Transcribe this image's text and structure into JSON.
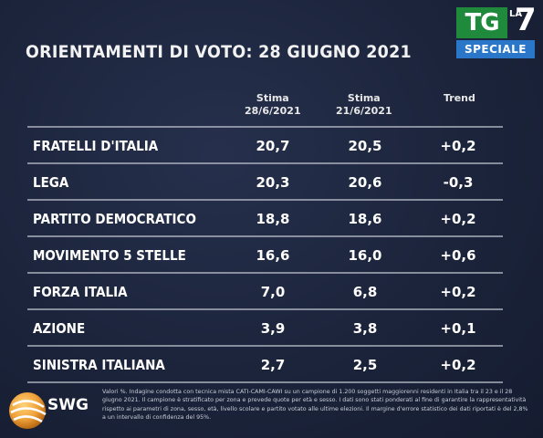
{
  "broadcaster": {
    "tg": "TG",
    "la": "LA",
    "seven": "7",
    "speciale": "SPECIALE"
  },
  "title": "ORIENTAMENTI DI VOTO: 28 GIUGNO 2021",
  "chart_data": {
    "type": "table",
    "columns": [
      {
        "line1": "Stima",
        "line2": "28/6/2021"
      },
      {
        "line1": "Stima",
        "line2": "21/6/2021"
      },
      {
        "line1": "Trend",
        "line2": ""
      }
    ],
    "rows": [
      {
        "party": "FRATELLI D'ITALIA",
        "stima_28_6": "20,7",
        "stima_21_6": "20,5",
        "trend": "+0,2"
      },
      {
        "party": "LEGA",
        "stima_28_6": "20,3",
        "stima_21_6": "20,6",
        "trend": "-0,3"
      },
      {
        "party": "PARTITO DEMOCRATICO",
        "stima_28_6": "18,8",
        "stima_21_6": "18,6",
        "trend": "+0,2"
      },
      {
        "party": "MOVIMENTO 5 STELLE",
        "stima_28_6": "16,6",
        "stima_21_6": "16,0",
        "trend": "+0,6"
      },
      {
        "party": "FORZA ITALIA",
        "stima_28_6": "7,0",
        "stima_21_6": "6,8",
        "trend": "+0,2"
      },
      {
        "party": "AZIONE",
        "stima_28_6": "3,9",
        "stima_21_6": "3,8",
        "trend": "+0,1"
      },
      {
        "party": "SINISTRA ITALIANA",
        "stima_28_6": "2,7",
        "stima_21_6": "2,5",
        "trend": "+0,2"
      }
    ]
  },
  "footnote": "Valori %. Indagine condotta con tecnica mista CATI-CAMI-CAWI su un campione di 1.200 soggetti maggiorenni residenti in Italia tra il 23 e il 28 giugno 2021. Il campione è stratificato per zona e prevede quote per età e sesso. I dati sono stati ponderati al fine di garantire la rappresentatività rispetto ai parametri di zona, sesso, età, livello scolare e partito votato alle ultime elezioni. Il margine d'errore statistico dei dati riportati è del 2,8% a un intervallo di confidenza del 95%.",
  "pollster": "SWG",
  "colors": {
    "background": "#1b233a",
    "text": "#ffffff",
    "separator": "#c8ccd6",
    "tg_green": "#1f8a3c",
    "speciale_blue": "#2a76c9",
    "swg_orange": "#f0a23a"
  }
}
